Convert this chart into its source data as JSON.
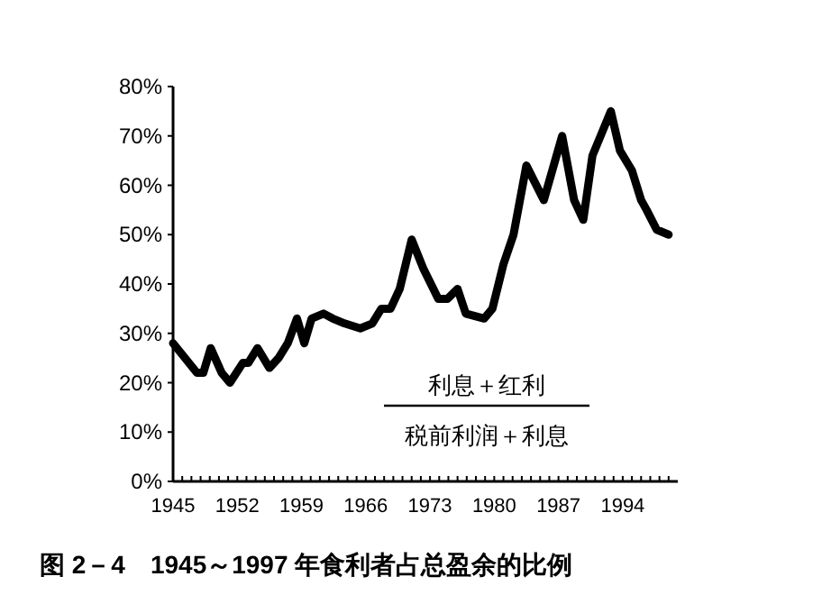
{
  "chart_data": {
    "type": "line",
    "title": "图 2－4　1945～1997 年食利者占总盈余的比例",
    "annotations": [
      "利息＋红利",
      "税前利润＋利息"
    ],
    "x": [
      1945,
      1947.6,
      1948.3,
      1949.1,
      1950.3,
      1951.2,
      1952.6,
      1953.2,
      1954.2,
      1955.5,
      1956.5,
      1957.5,
      1958.5,
      1959.3,
      1960.1,
      1961.4,
      1962.4,
      1963.7,
      1965.4,
      1966.7,
      1967.7,
      1968.7,
      1969.7,
      1971,
      1972.3,
      1973.9,
      1974.9,
      1976,
      1976.9,
      1978.9,
      1979.8,
      1981,
      1982.1,
      1983.5,
      1985.4,
      1987.4,
      1988.7,
      1989.7,
      1990.7,
      1992.7,
      1993.7,
      1995,
      1996,
      1996.6,
      1997.7,
      1999
    ],
    "series": [
      {
        "color": "#000000",
        "values": [
          28,
          22,
          22,
          27,
          22,
          20,
          24,
          24,
          27,
          23,
          25,
          28,
          33,
          28,
          33,
          34,
          33,
          32,
          31,
          32,
          35,
          35,
          39,
          49,
          43,
          37,
          37,
          39,
          34,
          33,
          35,
          44,
          50,
          64,
          57,
          70,
          57,
          53,
          66,
          75,
          67,
          63,
          57,
          55,
          51,
          50
        ]
      }
    ],
    "xlim": [
      1945,
      2000
    ],
    "xticks": [
      1945,
      {
        "value": 1946,
        "label": null
      },
      {
        "value": 1947,
        "label": null
      },
      {
        "value": 1948,
        "label": null
      },
      {
        "value": 1949,
        "label": null
      },
      {
        "value": 1950,
        "label": null
      },
      {
        "value": 1951,
        "label": null
      },
      1952,
      {
        "value": 1953,
        "label": null
      },
      {
        "value": 1954,
        "label": null
      },
      {
        "value": 1955,
        "label": null
      },
      {
        "value": 1956,
        "label": null
      },
      {
        "value": 1957,
        "label": null
      },
      {
        "value": 1958,
        "label": null
      },
      1959,
      {
        "value": 1960,
        "label": null
      },
      {
        "value": 1961,
        "label": null
      },
      {
        "value": 1962,
        "label": null
      },
      {
        "value": 1963,
        "label": null
      },
      {
        "value": 1964,
        "label": null
      },
      {
        "value": 1965,
        "label": null
      },
      1966,
      {
        "value": 1967,
        "label": null
      },
      {
        "value": 1968,
        "label": null
      },
      {
        "value": 1969,
        "label": null
      },
      {
        "value": 1970,
        "label": null
      },
      {
        "value": 1971,
        "label": null
      },
      {
        "value": 1972,
        "label": null
      },
      1973,
      {
        "value": 1974,
        "label": null
      },
      {
        "value": 1975,
        "label": null
      },
      {
        "value": 1976,
        "label": null
      },
      {
        "value": 1977,
        "label": null
      },
      {
        "value": 1978,
        "label": null
      },
      {
        "value": 1979,
        "label": null
      },
      1980,
      {
        "value": 1981,
        "label": null
      },
      {
        "value": 1982,
        "label": null
      },
      {
        "value": 1983,
        "label": null
      },
      {
        "value": 1984,
        "label": null
      },
      {
        "value": 1985,
        "label": null
      },
      {
        "value": 1986,
        "label": null
      },
      1987,
      {
        "value": 1988,
        "label": null
      },
      {
        "value": 1989,
        "label": null
      },
      {
        "value": 1990,
        "label": null
      },
      {
        "value": 1991,
        "label": null
      },
      {
        "value": 1992,
        "label": null
      },
      {
        "value": 1993,
        "label": null
      },
      1994,
      {
        "value": 1995,
        "label": null
      },
      {
        "value": 1996,
        "label": null
      },
      {
        "value": 1997,
        "label": null
      },
      {
        "value": 1998,
        "label": null
      },
      {
        "value": 1999,
        "label": null
      }
    ],
    "ylim": [
      0,
      80
    ],
    "yticks": [
      {
        "value": 0,
        "label": "0%"
      },
      {
        "value": 10,
        "label": "10%"
      },
      {
        "value": 20,
        "label": "20%"
      },
      {
        "value": 30,
        "label": "30%"
      },
      {
        "value": 40,
        "label": "40%"
      },
      {
        "value": 50,
        "label": "50%"
      },
      {
        "value": 60,
        "label": "60%"
      },
      {
        "value": 70,
        "label": "70%"
      },
      {
        "value": 80,
        "label": "80%"
      }
    ],
    "grid": false,
    "marker": "none",
    "line_style": "solid"
  }
}
